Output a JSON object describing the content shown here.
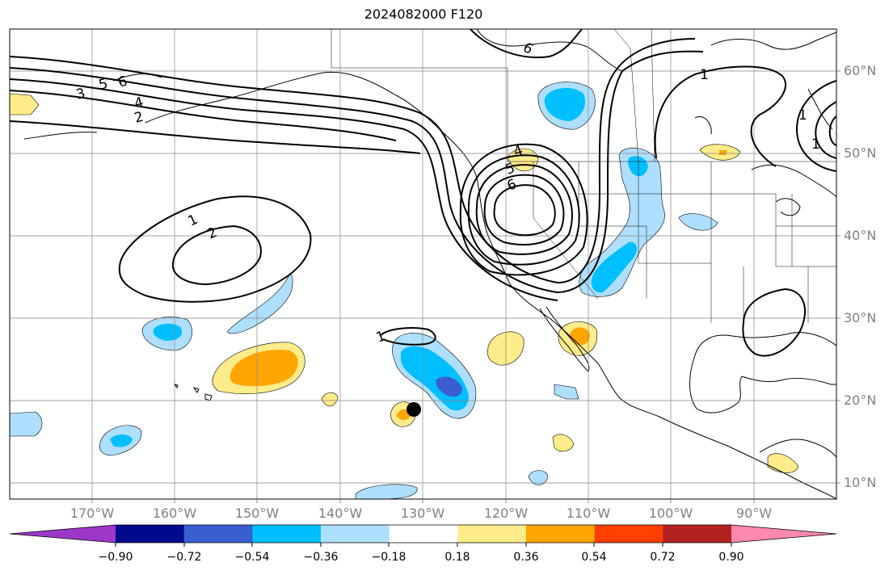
{
  "title": "2024082000 F120",
  "lat_labels": [
    {
      "text": "60°N",
      "lat": 60
    },
    {
      "text": "50°N",
      "lat": 50
    },
    {
      "text": "40°N",
      "lat": 40
    },
    {
      "text": "30°N",
      "lat": 30
    },
    {
      "text": "20°N",
      "lat": 20
    },
    {
      "text": "10°N",
      "lat": 10
    }
  ],
  "lon_labels": [
    {
      "text": "170°W",
      "lon": -170
    },
    {
      "text": "160°W",
      "lon": -160
    },
    {
      "text": "150°W",
      "lon": -150
    },
    {
      "text": "140°W",
      "lon": -140
    },
    {
      "text": "130°W",
      "lon": -130
    },
    {
      "text": "120°W",
      "lon": -120
    },
    {
      "text": "110°W",
      "lon": -110
    },
    {
      "text": "100°W",
      "lon": -100
    },
    {
      "text": "90°W",
      "lon": -90
    }
  ],
  "colorbar": {
    "colors": [
      "#9c37c9",
      "#000a8c",
      "#3a5ed0",
      "#00bfff",
      "#aedfff",
      "#ffffff",
      "#ffec8b",
      "#ffa500",
      "#ff3f00",
      "#b22222",
      "#ff88ae"
    ],
    "tick_labels": [
      "−0.90",
      "−0.72",
      "−0.54",
      "−0.36",
      "−0.18",
      "0.18",
      "0.36",
      "0.54",
      "0.72",
      "0.90"
    ]
  },
  "contour_labels": [
    "1",
    "2",
    "3",
    "4",
    "5",
    "6"
  ],
  "storm_marker": {
    "lon": -131.8,
    "lat": 18.8
  }
}
